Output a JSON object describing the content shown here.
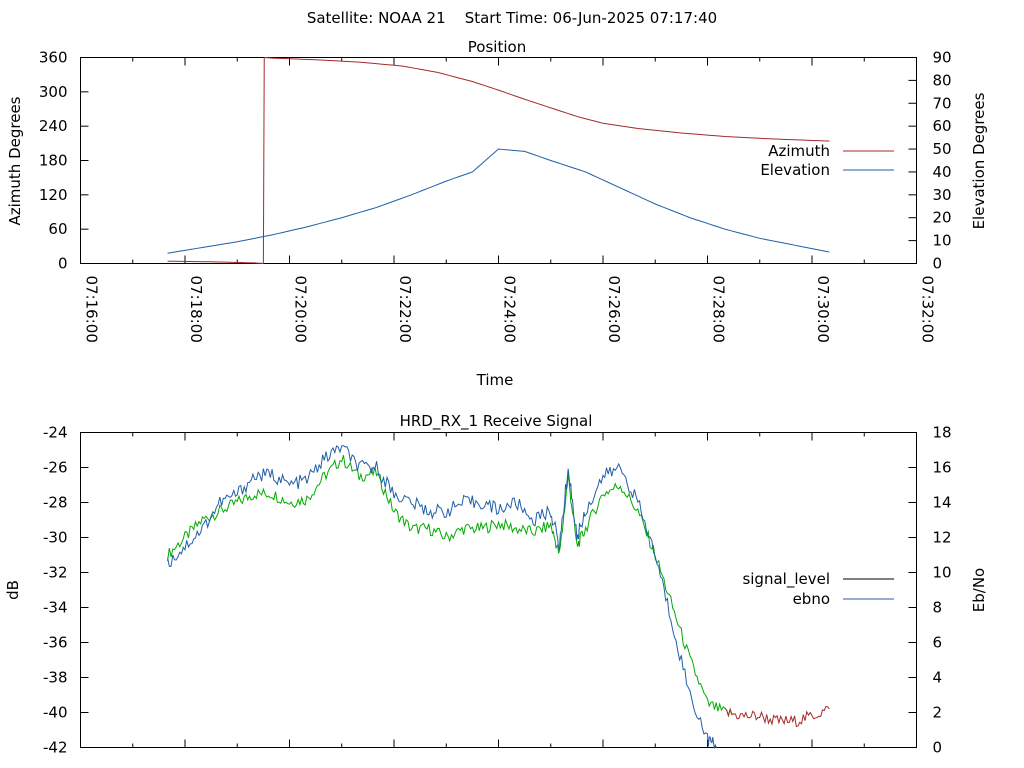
{
  "page_title": "Satellite: NOAA 21    Start Time: 06-Jun-2025 07:17:40",
  "chart_data": [
    {
      "type": "line",
      "title": "Position",
      "xlabel": "Time",
      "ylabel": "Azimuth Degrees",
      "y2label": "Elevation Degrees",
      "x_ticks": [
        "07:16:00",
        "07:18:00",
        "07:20:00",
        "07:22:00",
        "07:24:00",
        "07:26:00",
        "07:28:00",
        "07:30:00",
        "07:32:00"
      ],
      "xlim": [
        "07:16:00",
        "07:32:00"
      ],
      "ylim": [
        0,
        360
      ],
      "y_ticks": [
        0,
        60,
        120,
        180,
        240,
        300,
        360
      ],
      "y2lim": [
        0,
        90
      ],
      "y2_ticks": [
        0,
        10,
        20,
        30,
        40,
        50,
        60,
        70,
        80,
        90
      ],
      "grid": false,
      "legend_position": "right",
      "series": [
        {
          "name": "Azimuth",
          "axis": "y",
          "color": "#a52a2a",
          "x": [
            "07:17:40",
            "07:18:30",
            "07:19:20",
            "07:19:30",
            "07:19:31",
            "07:19:40",
            "07:20:30",
            "07:21:20",
            "07:22:10",
            "07:22:50",
            "07:23:30",
            "07:24:00",
            "07:24:30",
            "07:25:00",
            "07:25:30",
            "07:26:00",
            "07:26:40",
            "07:27:30",
            "07:28:20",
            "07:29:10",
            "07:30:00",
            "07:30:20"
          ],
          "values": [
            4,
            3,
            1,
            0,
            360,
            359,
            356,
            352,
            345,
            334,
            318,
            303,
            287,
            272,
            257,
            245,
            236,
            228,
            222,
            218,
            215,
            214
          ]
        },
        {
          "name": "Elevation",
          "axis": "y2",
          "color": "#1f5fa8",
          "x": [
            "07:17:40",
            "07:18:20",
            "07:19:00",
            "07:19:40",
            "07:20:20",
            "07:21:00",
            "07:21:40",
            "07:22:20",
            "07:23:00",
            "07:23:30",
            "07:24:00",
            "07:24:30",
            "07:25:00",
            "07:25:40",
            "07:26:20",
            "07:27:00",
            "07:27:40",
            "07:28:20",
            "07:29:00",
            "07:29:40",
            "07:30:20"
          ],
          "values": [
            4.5,
            7,
            9.5,
            12.5,
            16,
            20,
            24.5,
            30,
            36,
            40,
            50,
            49,
            45,
            40,
            33,
            26,
            20,
            15,
            11,
            8,
            5
          ]
        }
      ]
    },
    {
      "type": "line",
      "title": "HRD_RX_1 Receive Signal",
      "xlabel": "",
      "ylabel": "dB",
      "y2label": "Eb/No",
      "xlim": [
        "07:16:00",
        "07:32:00"
      ],
      "ylim": [
        -42,
        -24
      ],
      "y_ticks": [
        -42,
        -40,
        -38,
        -36,
        -34,
        -32,
        -30,
        -28,
        -26,
        -24
      ],
      "y2lim": [
        0,
        18
      ],
      "y2_ticks": [
        0,
        2,
        4,
        6,
        8,
        10,
        12,
        14,
        16,
        18
      ],
      "grid": false,
      "legend_position": "right",
      "series": [
        {
          "name": "signal_level",
          "axis": "y",
          "color": "#00aa00",
          "tail_color": "#a52a2a",
          "tail_from": "07:28:30",
          "x": [
            "07:17:40",
            "07:18:00",
            "07:18:20",
            "07:18:40",
            "07:19:00",
            "07:19:20",
            "07:19:40",
            "07:20:00",
            "07:20:20",
            "07:20:40",
            "07:21:00",
            "07:21:20",
            "07:21:40",
            "07:22:00",
            "07:22:20",
            "07:22:40",
            "07:23:00",
            "07:23:20",
            "07:23:40",
            "07:24:00",
            "07:24:20",
            "07:24:40",
            "07:25:00",
            "07:25:10",
            "07:25:20",
            "07:25:30",
            "07:25:40",
            "07:26:00",
            "07:26:20",
            "07:26:40",
            "07:27:00",
            "07:27:20",
            "07:27:40",
            "07:28:00",
            "07:28:20",
            "07:28:40",
            "07:29:00",
            "07:29:20",
            "07:29:40",
            "07:30:00",
            "07:30:20"
          ],
          "values": [
            -31,
            -30,
            -29,
            -28.5,
            -28,
            -27.5,
            -27.5,
            -28,
            -27.8,
            -26.5,
            -25.5,
            -26.5,
            -26.3,
            -28.5,
            -29.5,
            -29.5,
            -30,
            -29.5,
            -29.5,
            -29.2,
            -29.5,
            -29.7,
            -29.3,
            -31,
            -26.5,
            -30.5,
            -29.5,
            -27.5,
            -27,
            -28.5,
            -31,
            -34,
            -37,
            -39.5,
            -40,
            -40.2,
            -40.2,
            -40.5,
            -40.5,
            -40.2,
            -39.8
          ]
        },
        {
          "name": "ebno",
          "axis": "y2",
          "color": "#1f5fa8",
          "x": [
            "07:17:40",
            "07:18:00",
            "07:18:20",
            "07:18:40",
            "07:19:00",
            "07:19:20",
            "07:19:40",
            "07:20:00",
            "07:20:20",
            "07:20:40",
            "07:21:00",
            "07:21:20",
            "07:21:40",
            "07:22:00",
            "07:22:20",
            "07:22:40",
            "07:23:00",
            "07:23:20",
            "07:23:40",
            "07:24:00",
            "07:24:20",
            "07:24:40",
            "07:25:00",
            "07:25:10",
            "07:25:20",
            "07:25:30",
            "07:25:40",
            "07:26:00",
            "07:26:20",
            "07:26:40",
            "07:27:00",
            "07:27:20",
            "07:27:40",
            "07:28:00",
            "07:28:10"
          ],
          "values": [
            10.5,
            11.5,
            12.5,
            14,
            14.5,
            15.5,
            15.6,
            15,
            15.3,
            16.5,
            17.2,
            16,
            16,
            14.5,
            14,
            13.5,
            13.5,
            14,
            14,
            13.6,
            14,
            13,
            13.5,
            11.5,
            16,
            12,
            13.5,
            15.5,
            16,
            14,
            11,
            7,
            3,
            0.5,
            0
          ]
        }
      ]
    }
  ]
}
